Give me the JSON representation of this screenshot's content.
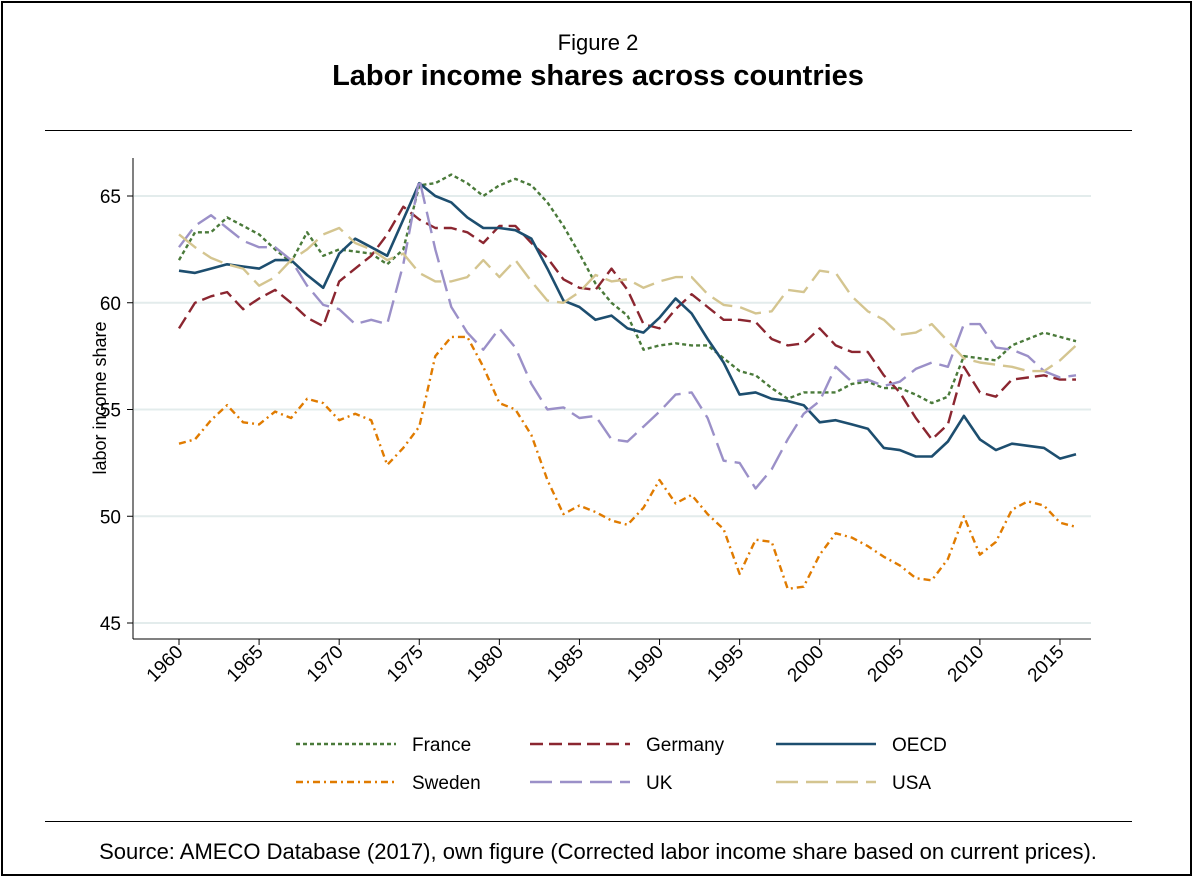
{
  "figure_label": "Figure 2",
  "title": "Labor income shares across countries",
  "source_note": "Source: AMECO Database (2017), own figure (Corrected labor income share based on current prices).",
  "chart_data": {
    "type": "line",
    "ylabel": "labor income share",
    "xlabel": "",
    "xlim": [
      1960,
      2016
    ],
    "ylim": [
      45,
      66
    ],
    "x_ticks": [
      1960,
      1965,
      1970,
      1975,
      1980,
      1985,
      1990,
      1995,
      2000,
      2005,
      2010,
      2015
    ],
    "y_ticks": [
      45,
      50,
      55,
      60,
      65
    ],
    "grid": "horizontal",
    "legend_position": "bottom",
    "x": [
      1960,
      1961,
      1962,
      1963,
      1964,
      1965,
      1966,
      1967,
      1968,
      1969,
      1970,
      1971,
      1972,
      1973,
      1974,
      1975,
      1976,
      1977,
      1978,
      1979,
      1980,
      1981,
      1982,
      1983,
      1984,
      1985,
      1986,
      1987,
      1988,
      1989,
      1990,
      1991,
      1992,
      1993,
      1994,
      1995,
      1996,
      1997,
      1998,
      1999,
      2000,
      2001,
      2002,
      2003,
      2004,
      2005,
      2006,
      2007,
      2008,
      2009,
      2010,
      2011,
      2012,
      2013,
      2014,
      2015,
      2016
    ],
    "series": [
      {
        "name": "France",
        "color": "#4a7a3a",
        "dash": "dotted",
        "values": [
          62.0,
          63.3,
          63.3,
          64.0,
          63.6,
          63.2,
          62.5,
          61.9,
          63.3,
          62.2,
          62.5,
          62.4,
          62.3,
          61.8,
          62.5,
          65.5,
          65.6,
          66.0,
          65.6,
          65.0,
          65.5,
          65.8,
          65.5,
          64.7,
          63.6,
          62.3,
          60.9,
          60.0,
          59.4,
          57.8,
          58.0,
          58.1,
          58.0,
          58.0,
          57.4,
          56.8,
          56.6,
          56.0,
          55.5,
          55.8,
          55.8,
          55.8,
          56.2,
          56.3,
          56.0,
          56.0,
          55.7,
          55.3,
          55.6,
          57.5,
          57.4,
          57.3,
          58.0,
          58.3,
          58.6,
          58.4,
          58.2
        ]
      },
      {
        "name": "Germany",
        "color": "#8b2630",
        "dash": "dashed",
        "values": [
          58.8,
          60.0,
          60.3,
          60.5,
          59.7,
          60.2,
          60.6,
          60.0,
          59.3,
          58.9,
          61.0,
          61.6,
          62.2,
          63.2,
          64.5,
          63.9,
          63.5,
          63.5,
          63.3,
          62.8,
          63.6,
          63.6,
          62.8,
          62.1,
          61.1,
          60.7,
          60.6,
          61.6,
          60.6,
          59.0,
          58.8,
          59.7,
          60.4,
          59.8,
          59.2,
          59.2,
          59.1,
          58.3,
          58.0,
          58.1,
          58.8,
          58.0,
          57.7,
          57.7,
          56.6,
          55.8,
          54.6,
          53.6,
          54.3,
          57.0,
          55.8,
          55.6,
          56.4,
          56.5,
          56.6,
          56.4,
          56.4
        ]
      },
      {
        "name": "OECD",
        "color": "#1d4e6f",
        "dash": "solid",
        "values": [
          61.5,
          61.4,
          61.6,
          61.8,
          61.7,
          61.6,
          62.0,
          62.0,
          61.3,
          60.7,
          62.3,
          63.0,
          62.6,
          62.2,
          63.9,
          65.6,
          65.0,
          64.7,
          64.0,
          63.5,
          63.5,
          63.4,
          63.0,
          61.6,
          60.1,
          59.8,
          59.2,
          59.4,
          58.8,
          58.6,
          59.3,
          60.2,
          59.5,
          58.3,
          57.2,
          55.7,
          55.8,
          55.5,
          55.4,
          55.2,
          54.4,
          54.5,
          54.3,
          54.1,
          53.2,
          53.1,
          52.8,
          52.8,
          53.5,
          54.7,
          53.6,
          53.1,
          53.4,
          53.3,
          53.2,
          52.7,
          52.9
        ]
      },
      {
        "name": "Sweden",
        "color": "#e07b00",
        "dash": "dashdot",
        "values": [
          53.4,
          53.6,
          54.5,
          55.2,
          54.4,
          54.3,
          54.9,
          54.6,
          55.5,
          55.3,
          54.5,
          54.8,
          54.5,
          52.4,
          53.2,
          54.2,
          57.5,
          58.4,
          58.4,
          57.0,
          55.3,
          55.0,
          53.8,
          51.7,
          50.1,
          50.5,
          50.2,
          49.8,
          49.6,
          50.4,
          51.7,
          50.6,
          51.0,
          50.1,
          49.4,
          47.3,
          48.9,
          48.8,
          46.6,
          46.7,
          48.2,
          49.2,
          49.0,
          48.6,
          48.1,
          47.7,
          47.1,
          47.0,
          48.0,
          50.0,
          48.2,
          48.8,
          50.3,
          50.7,
          50.5,
          49.7,
          49.5
        ]
      },
      {
        "name": "UK",
        "color": "#9b90c8",
        "dash": "longdash",
        "values": [
          62.6,
          63.6,
          64.1,
          63.5,
          62.9,
          62.6,
          62.6,
          62.0,
          60.8,
          59.9,
          59.7,
          59.0,
          59.2,
          59.0,
          61.8,
          65.8,
          62.5,
          59.8,
          58.6,
          57.8,
          58.8,
          57.9,
          56.2,
          55.0,
          55.1,
          54.6,
          54.7,
          53.6,
          53.5,
          54.2,
          54.9,
          55.7,
          55.8,
          54.6,
          52.6,
          52.5,
          51.3,
          52.2,
          53.6,
          54.8,
          55.4,
          57.0,
          56.3,
          56.4,
          56.1,
          56.3,
          56.9,
          57.2,
          57.0,
          59.0,
          59.0,
          57.9,
          57.8,
          57.5,
          56.8,
          56.5,
          56.6
        ]
      },
      {
        "name": "USA",
        "color": "#d4c590",
        "dash": "longdash",
        "values": [
          63.2,
          62.6,
          62.1,
          61.8,
          61.6,
          60.8,
          61.2,
          62.0,
          62.5,
          63.2,
          63.5,
          62.8,
          62.5,
          62.0,
          62.3,
          61.4,
          61.0,
          61.0,
          61.2,
          62.0,
          61.2,
          62.0,
          61.0,
          60.1,
          60.0,
          60.5,
          61.3,
          61.0,
          61.1,
          60.7,
          61.0,
          61.2,
          61.2,
          60.4,
          59.9,
          59.8,
          59.5,
          59.6,
          60.6,
          60.5,
          61.5,
          61.4,
          60.3,
          59.6,
          59.2,
          58.5,
          58.6,
          59.0,
          58.2,
          57.4,
          57.2,
          57.1,
          57.0,
          56.8,
          56.8,
          57.3,
          58.0
        ]
      }
    ]
  }
}
